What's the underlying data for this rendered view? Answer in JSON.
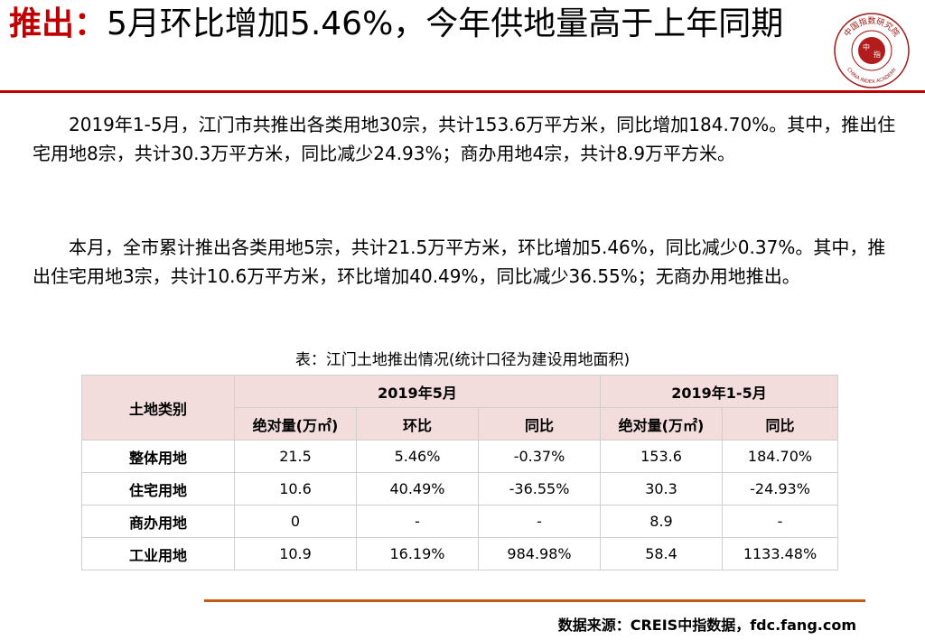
{
  "title": {
    "prefix": "推出：",
    "rest": "5月环比增加5.46%，今年供地量高于上年同期"
  },
  "logo": {
    "outer_text": "中国指数研究院",
    "center_left": "中",
    "center_right": "指",
    "english": "CHINA INDEX ACADEMY"
  },
  "paragraphs": [
    "2019年1-5月，江门市共推出各类用地30宗，共计153.6万平方米，同比增加184.70%。其中，推出住宅用地8宗，共计30.3万平方米，同比减少24.93%；商办用地4宗，共计8.9万平方米。",
    "本月，全市累计推出各类用地5宗，共计21.5万平方米，环比增加5.46%，同比减少0.37%。其中，推出住宅用地3宗，共计10.6万平方米，环比增加40.49%，同比减少36.55%；无商办用地推出。"
  ],
  "table": {
    "caption": "表：江门土地推出情况(统计口径为建设用地面积)",
    "header": {
      "category": "土地类别",
      "group1": "2019年5月",
      "group2": "2019年1-5月",
      "sub": [
        "绝对量(万㎡)",
        "环比",
        "同比",
        "绝对量(万㎡)",
        "同比"
      ]
    },
    "rows": [
      {
        "category": "整体用地",
        "cells": [
          "21.5",
          "5.46%",
          "-0.37%",
          "153.6",
          "184.70%"
        ]
      },
      {
        "category": "住宅用地",
        "cells": [
          "10.6",
          "40.49%",
          "-36.55%",
          "30.3",
          "-24.93%"
        ]
      },
      {
        "category": "商办用地",
        "cells": [
          "0",
          "-",
          "-",
          "8.9",
          "-"
        ]
      },
      {
        "category": "工业用地",
        "cells": [
          "10.9",
          "16.19%",
          "984.98%",
          "58.4",
          "1133.48%"
        ]
      }
    ]
  },
  "footnote": "数据来源：CREIS中指数据，fdc.fang.com",
  "colors": {
    "accent": "#c00000",
    "header_bg": "#f2dcdc",
    "footer_rule": "#c55a11"
  }
}
